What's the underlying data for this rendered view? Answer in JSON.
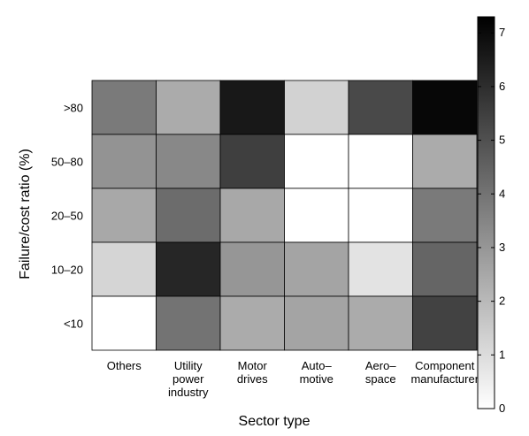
{
  "chart_data": {
    "type": "heatmap",
    "xlabel": "Sector type",
    "ylabel": "Failure/cost ratio (%)",
    "x_categories": [
      [
        "Others"
      ],
      [
        "Utility",
        "power",
        "industry"
      ],
      [
        "Motor",
        "drives"
      ],
      [
        "Auto–",
        "motive"
      ],
      [
        "Aero–",
        "space"
      ],
      [
        "Component",
        "manufacturer"
      ]
    ],
    "y_categories": [
      ">80",
      "50–80",
      "20–50",
      "10–20",
      "<10"
    ],
    "values": [
      [
        3.8,
        2.4,
        6.6,
        1.3,
        5.2,
        7.1
      ],
      [
        3.1,
        3.4,
        5.5,
        0.0,
        0.0,
        2.4
      ],
      [
        2.5,
        4.2,
        2.5,
        0.0,
        0.0,
        3.8
      ],
      [
        1.2,
        6.2,
        3.0,
        2.6,
        0.8,
        4.4
      ],
      [
        0.0,
        4.0,
        2.4,
        2.6,
        2.4,
        5.4
      ]
    ],
    "colorbar": {
      "min": 0,
      "max": 7.3,
      "ticks": [
        0,
        1,
        2,
        3,
        4,
        5,
        6,
        7
      ],
      "colormap": "gray (white = low, black = high)"
    }
  }
}
